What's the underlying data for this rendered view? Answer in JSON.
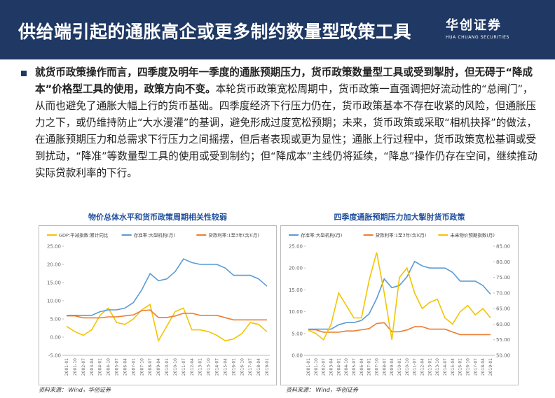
{
  "header": {
    "title": "供给端引起的通胀高企或更多制约数量型政策工具",
    "logo": "华创证券",
    "logo_sub": "HUA CHUANG SECURITIES"
  },
  "body": {
    "bold": "就货币政策操作而言，四季度及明年一季度的通胀预期压力，货币政策数量型工具或受到掣肘，但无碍于“降成本”价格型工具的使用，政策方向不变。",
    "text": "本轮货币政策宽松周期中，货币政策一直强调把好流动性的“总闸门”，从而也避免了通胀大幅上行的货币基础。四季度经济下行压力仍在，货币政策基本不存在收紧的风险，但通胀压力之下，或仍维持防止“大水漫灌”的基调，避免形成过度宽松预期；未来，货币政策或采取“相机抉择”的做法，在通胀预期压力和总需求下行压力之间摇摆，但后者表现或更为显性；通胀上行过程中，货币政策宽松基调或受到扰动，“降准”等数量型工具的使用或受到制约；但“降成本”主线仍将延续，“降息”操作仍存在空间，继续推动实际贷款利率的下行。"
  },
  "chart_data": [
    {
      "type": "line",
      "title": "物价总体水平和货币政策周期相关性较弱",
      "source": "资料来源： Wind，华创证券",
      "x": [
        "2001-01",
        "2001-10",
        "2002-07",
        "2003-04",
        "2004-01",
        "2004-10",
        "2005-07",
        "2006-04",
        "2007-01",
        "2007-10",
        "2008-07",
        "2009-04",
        "2010-01",
        "2010-10",
        "2011-07",
        "2012-04",
        "2013-01",
        "2013-10",
        "2014-07",
        "2015-04",
        "2016-01",
        "2016-10",
        "2017-07",
        "2018-04",
        "2019-01"
      ],
      "ylim": [
        -5,
        25
      ],
      "yticks": [
        {
          "value": -5,
          "label": "-5.00"
        },
        {
          "value": 0,
          "label": "0.00"
        },
        {
          "value": 5,
          "label": "5.00"
        },
        {
          "value": 10,
          "label": "10.00"
        },
        {
          "value": 15,
          "label": "15.00"
        },
        {
          "value": 20,
          "label": "20.00"
        },
        {
          "value": 25,
          "label": "25.00"
        }
      ],
      "series": [
        {
          "name": "GDP:平减指数:累计同比",
          "color": "#f2c500",
          "values": [
            3,
            1.5,
            0.5,
            2,
            6,
            8,
            4,
            3.5,
            5,
            7.5,
            9,
            -1,
            3,
            7,
            8,
            2,
            2,
            1.5,
            0.5,
            -1,
            -0.5,
            1,
            4,
            3.5,
            1.5
          ]
        },
        {
          "name": "存准率:大型机构(月)",
          "color": "#5b9bd5",
          "values": [
            6,
            6,
            6,
            6,
            7,
            7.5,
            7.5,
            8,
            9.5,
            13,
            17.5,
            15.5,
            16,
            18,
            21.5,
            20.5,
            20,
            20,
            20,
            19,
            17,
            17,
            17,
            16,
            14
          ]
        },
        {
          "name": "贷款利率:1至3年(含)(月)",
          "color": "#ed7d31",
          "values": [
            5.85,
            5.85,
            5.31,
            5.31,
            5.31,
            5.58,
            5.58,
            5.85,
            6.12,
            7.29,
            7.47,
            5.4,
            5.4,
            5.81,
            6.56,
            6.56,
            6,
            6,
            6,
            5.35,
            4.75,
            4.75,
            4.75,
            4.75,
            4.75
          ]
        }
      ]
    },
    {
      "type": "line",
      "title": "四季度通胀预期压力加大掣肘货币政策",
      "source": "资料来源： Wind，华创证券",
      "x": [
        "2001-01",
        "2001-10",
        "2002-07",
        "2003-04",
        "2004-01",
        "2004-10",
        "2005-07",
        "2006-04",
        "2007-01",
        "2007-10",
        "2008-07",
        "2009-04",
        "2010-01",
        "2010-10",
        "2011-07",
        "2012-04",
        "2013-01",
        "2013-10",
        "2014-07",
        "2015-04",
        "2016-01",
        "2016-10",
        "2017-07",
        "2018-04",
        "2019-01"
      ],
      "ylim": [
        0,
        25
      ],
      "yticks": [
        {
          "value": 0,
          "label": "0.00"
        },
        {
          "value": 5,
          "label": "5.00"
        },
        {
          "value": 10,
          "label": "10.00"
        },
        {
          "value": 15,
          "label": "15.00"
        },
        {
          "value": 20,
          "label": "20.00"
        },
        {
          "value": 25,
          "label": "25.00"
        }
      ],
      "y2lim": [
        50,
        85
      ],
      "y2ticks": [
        {
          "value": 50,
          "label": "50.00"
        },
        {
          "value": 55,
          "label": "55.00"
        },
        {
          "value": 60,
          "label": "60.00"
        },
        {
          "value": 65,
          "label": "65.00"
        },
        {
          "value": 70,
          "label": "70.00"
        },
        {
          "value": 75,
          "label": "75.00"
        },
        {
          "value": 80,
          "label": "80.00"
        },
        {
          "value": 85,
          "label": "85.00"
        }
      ],
      "series": [
        {
          "name": "存准率:大型机构(月)",
          "color": "#5b9bd5",
          "values": [
            6,
            6,
            6,
            6,
            7,
            7.5,
            7.5,
            8,
            9.5,
            13,
            17.5,
            15.5,
            16,
            18,
            21.5,
            20.5,
            20,
            20,
            20,
            19,
            17,
            17,
            17,
            16,
            14
          ]
        },
        {
          "name": "贷款利率:1至3年(含)(月)",
          "color": "#ed7d31",
          "values": [
            5.85,
            5.85,
            5.31,
            5.31,
            5.31,
            5.58,
            5.58,
            5.85,
            6.12,
            7.29,
            7.47,
            5.4,
            5.4,
            5.81,
            6.56,
            6.56,
            6,
            6,
            6,
            5.35,
            4.75,
            4.75,
            4.75,
            4.75,
            4.75
          ]
        },
        {
          "name": "未来物价预期指数(月)",
          "color": "#f2c500",
          "axis": "y2",
          "values": [
            58,
            57,
            55,
            60,
            70,
            66,
            62,
            62,
            74,
            83,
            70,
            55,
            75,
            78,
            70,
            65,
            67,
            68,
            62,
            60,
            64,
            66,
            63,
            65,
            62
          ]
        }
      ]
    }
  ]
}
